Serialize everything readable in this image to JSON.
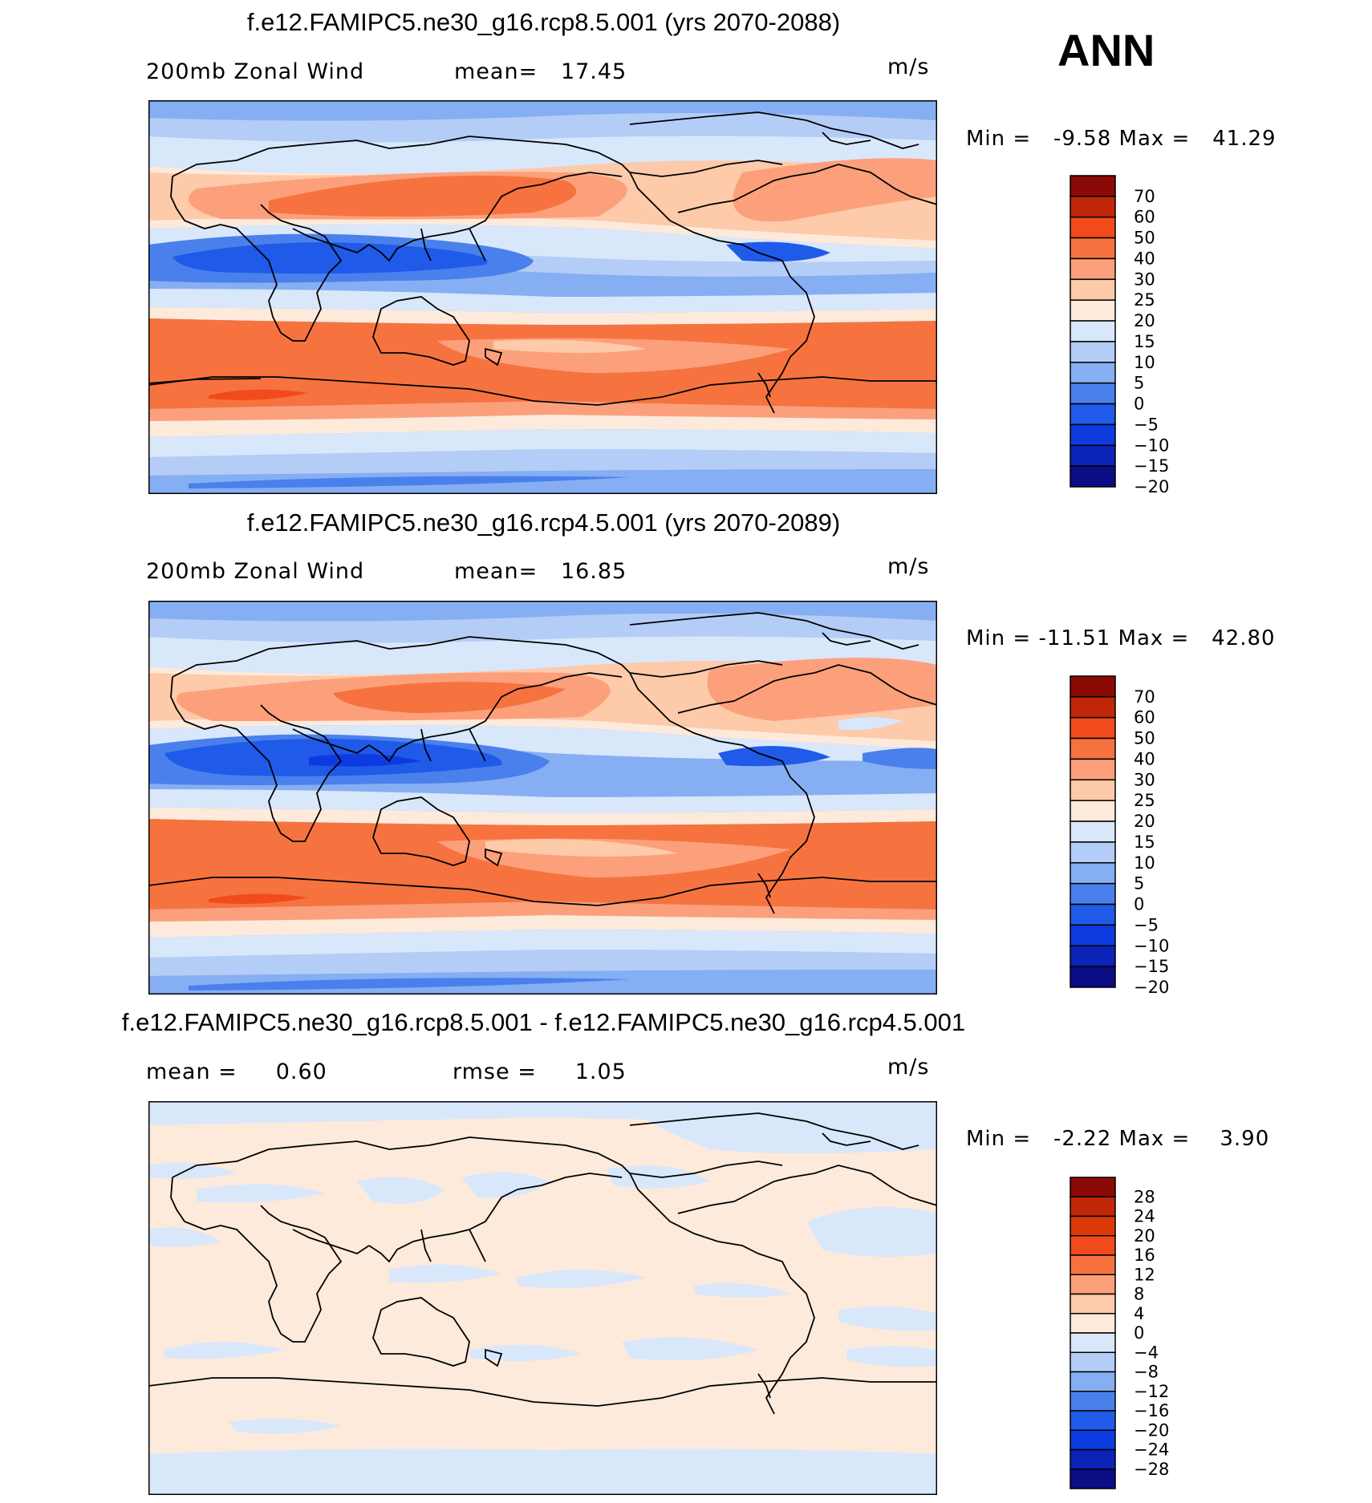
{
  "season": "ANN",
  "colors": {
    "main_palette": [
      "#0b0d84",
      "#0b23b7",
      "#0e3be0",
      "#1f5ae8",
      "#4a80ec",
      "#86aef2",
      "#b4cdf7",
      "#d9e7fb",
      "#fdeadb",
      "#fdcaaa",
      "#fca07c",
      "#f6733f",
      "#f24b1b",
      "#bf2708",
      "#8b0a06"
    ],
    "diff_palette": [
      "#0b0d84",
      "#0b23b7",
      "#0e3be0",
      "#1f5ae8",
      "#4a80ec",
      "#86aef2",
      "#b4cdf7",
      "#d9e7fb",
      "#fdeadb",
      "#fdcaaa",
      "#fca07c",
      "#f6733f",
      "#f24b1b",
      "#db3a08",
      "#bf2708",
      "#8b0a06"
    ],
    "coastline": "#000000",
    "frame": "#000000"
  },
  "panels": [
    {
      "title": "f.e12.FAMIPC5.ne30_g16.rcp8.5.001 (yrs 2070-2088)",
      "left_text": "200mb Zonal Wind",
      "mid_text": "mean=   17.45",
      "units": "m/s",
      "min_max": "Min =   -9.58 Max =   41.29",
      "colorbar_labels": [
        "70",
        "60",
        "50",
        "40",
        "30",
        "25",
        "20",
        "15",
        "10",
        "5",
        "0",
        "-5",
        "-10",
        "-15",
        "-20"
      ],
      "min": -9.58,
      "max": 41.29
    },
    {
      "title": "f.e12.FAMIPC5.ne30_g16.rcp4.5.001 (yrs 2070-2089)",
      "left_text": "200mb Zonal Wind",
      "mid_text": "mean=   16.85",
      "units": "m/s",
      "min_max": "Min = -11.51 Max =   42.80",
      "colorbar_labels": [
        "70",
        "60",
        "50",
        "40",
        "30",
        "25",
        "20",
        "15",
        "10",
        "5",
        "0",
        "-5",
        "-10",
        "-15",
        "-20"
      ],
      "min": -11.51,
      "max": 42.8
    },
    {
      "title": "f.e12.FAMIPC5.ne30_g16.rcp8.5.001 - f.e12.FAMIPC5.ne30_g16.rcp4.5.001",
      "left_text": "mean =     0.60",
      "mid_text": "rmse =     1.05",
      "units": "m/s",
      "min_max": "Min =   -2.22 Max =    3.90",
      "colorbar_labels": [
        "28",
        "24",
        "20",
        "16",
        "12",
        "8",
        "4",
        "0",
        "-4",
        "-8",
        "-12",
        "-16",
        "-20",
        "-24",
        "-28"
      ],
      "min": -2.22,
      "max": 3.9
    }
  ]
}
